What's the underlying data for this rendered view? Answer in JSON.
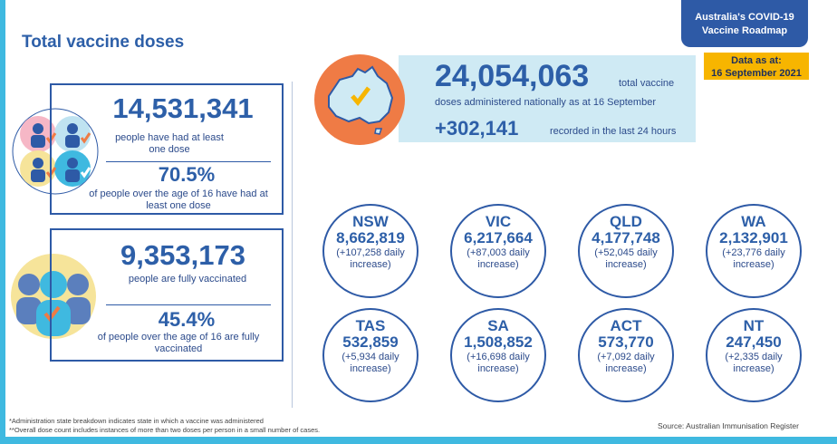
{
  "page_title": "Total vaccine doses",
  "roadmap": {
    "line1": "Australia's COVID-19",
    "line2": "Vaccine Roadmap"
  },
  "as_at": {
    "line1": "Data as at:",
    "line2": "16 September 2021"
  },
  "first_dose": {
    "count": "14,531,341",
    "label": "people have had at least one dose",
    "percent": "70.5%",
    "percent_label": "of people over the age of 16 have had at least one dose"
  },
  "fully": {
    "count": "9,353,173",
    "label": "people are fully vaccinated",
    "percent": "45.4%",
    "percent_label": "of people over the age of 16 are fully vaccinated"
  },
  "national": {
    "total": "24,054,063",
    "total_label_a": "total vaccine",
    "total_label_b": "doses administered nationally as at 16 September",
    "daily": "+302,141",
    "daily_label": "recorded in the last 24 hours"
  },
  "states": [
    {
      "name": "NSW",
      "total": "8,662,819",
      "increase": "(+107,258 daily increase)"
    },
    {
      "name": "VIC",
      "total": "6,217,664",
      "increase": "(+87,003 daily increase)"
    },
    {
      "name": "QLD",
      "total": "4,177,748",
      "increase": "(+52,045 daily increase)"
    },
    {
      "name": "WA",
      "total": "2,132,901",
      "increase": "(+23,776 daily increase)"
    },
    {
      "name": "TAS",
      "total": "532,859",
      "increase": "(+5,934 daily increase)"
    },
    {
      "name": "SA",
      "total": "1,508,852",
      "increase": "(+16,698 daily increase)"
    },
    {
      "name": "ACT",
      "total": "573,770",
      "increase": "(+7,092 daily increase)"
    },
    {
      "name": "NT",
      "total": "247,450",
      "increase": "(+2,335 daily increase)"
    }
  ],
  "footnotes": {
    "note1": "*Administration state breakdown indicates state in which a vaccine was administered",
    "note2": "**Overall dose count includes instances of more than two doses per person in a small number of cases.",
    "source": "Source: Australian Immunisation Register"
  },
  "colors": {
    "brand_blue": "#2e5aa6",
    "accent_yellow": "#f7b500",
    "light_blue": "#cfeaf4",
    "accent_orange": "#ef7b45"
  },
  "icons": [
    "people-group-icon",
    "person-silhouette-icon",
    "australia-map-icon",
    "checkmark-icon"
  ]
}
